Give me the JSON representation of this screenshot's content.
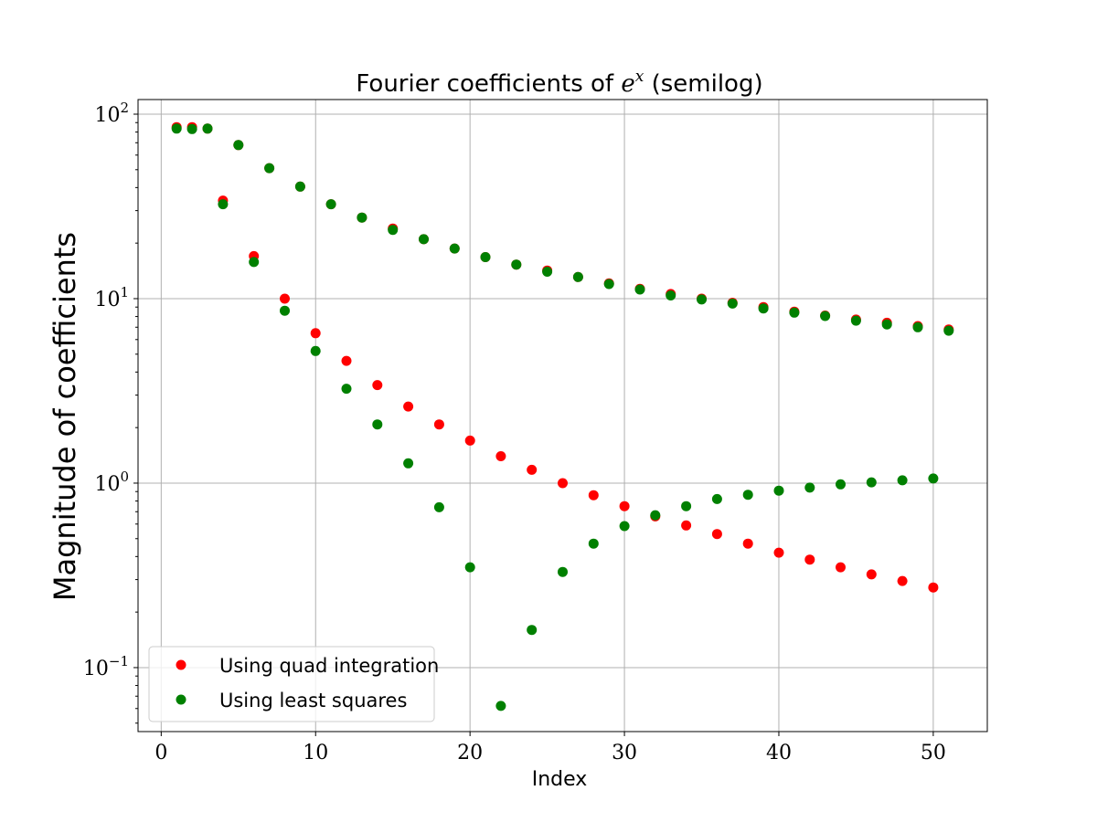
{
  "chart_data": {
    "type": "scatter",
    "title": "Fourier coefficients of ",
    "title_math": "e",
    "title_sup": "x",
    "title_suffix": " (semilog)",
    "xlabel": "Index",
    "ylabel": "Magnitude of coefficients",
    "xlim": [
      -1.5,
      53.5
    ],
    "ylim": [
      0.045,
      120
    ],
    "yscale": "log",
    "grid": true,
    "legend_position": "lower-left",
    "x_ticks": [
      {
        "value": 0,
        "label": "0"
      },
      {
        "value": 10,
        "label": "10"
      },
      {
        "value": 20,
        "label": "20"
      },
      {
        "value": 30,
        "label": "30"
      },
      {
        "value": 40,
        "label": "40"
      },
      {
        "value": 50,
        "label": "50"
      }
    ],
    "y_ticks": [
      {
        "value": 0.1,
        "base": "10",
        "exp": "−1"
      },
      {
        "value": 1,
        "base": "10",
        "exp": "0"
      },
      {
        "value": 10,
        "base": "10",
        "exp": "1"
      },
      {
        "value": 100,
        "base": "10",
        "exp": "2"
      }
    ],
    "series": [
      {
        "name": "Using quad integration",
        "color": "#ff0000",
        "points": [
          [
            1,
            85.0
          ],
          [
            2,
            85.0
          ],
          [
            3,
            83.5
          ],
          [
            4,
            34.0
          ],
          [
            5,
            68.0
          ],
          [
            6,
            17.0
          ],
          [
            7,
            51.0
          ],
          [
            8,
            10.0
          ],
          [
            9,
            40.5
          ],
          [
            10,
            6.5
          ],
          [
            11,
            32.5
          ],
          [
            12,
            4.6
          ],
          [
            13,
            27.5
          ],
          [
            14,
            3.4
          ],
          [
            15,
            24.0
          ],
          [
            16,
            2.6
          ],
          [
            17,
            21.0
          ],
          [
            18,
            2.08
          ],
          [
            19,
            18.7
          ],
          [
            20,
            1.7
          ],
          [
            21,
            16.8
          ],
          [
            22,
            1.4
          ],
          [
            23,
            15.3
          ],
          [
            24,
            1.18
          ],
          [
            25,
            14.2
          ],
          [
            26,
            1.0
          ],
          [
            27,
            13.1
          ],
          [
            28,
            0.86
          ],
          [
            29,
            12.1
          ],
          [
            30,
            0.75
          ],
          [
            31,
            11.3
          ],
          [
            32,
            0.66
          ],
          [
            33,
            10.6
          ],
          [
            34,
            0.59
          ],
          [
            35,
            10.0
          ],
          [
            36,
            0.53
          ],
          [
            37,
            9.5
          ],
          [
            38,
            0.47
          ],
          [
            39,
            9.0
          ],
          [
            40,
            0.42
          ],
          [
            41,
            8.5
          ],
          [
            42,
            0.385
          ],
          [
            43,
            8.1
          ],
          [
            44,
            0.35
          ],
          [
            45,
            7.7
          ],
          [
            46,
            0.32
          ],
          [
            47,
            7.4
          ],
          [
            48,
            0.295
          ],
          [
            49,
            7.1
          ],
          [
            50,
            0.272
          ],
          [
            51,
            6.8
          ]
        ]
      },
      {
        "name": "Using least squares",
        "color": "#008000",
        "points": [
          [
            1,
            83.5
          ],
          [
            2,
            83.0
          ],
          [
            3,
            83.5
          ],
          [
            4,
            32.5
          ],
          [
            5,
            68.0
          ],
          [
            6,
            15.8
          ],
          [
            7,
            51.0
          ],
          [
            8,
            8.6
          ],
          [
            9,
            40.5
          ],
          [
            10,
            5.2
          ],
          [
            11,
            32.5
          ],
          [
            12,
            3.25
          ],
          [
            13,
            27.5
          ],
          [
            14,
            2.08
          ],
          [
            15,
            23.6
          ],
          [
            16,
            1.28
          ],
          [
            17,
            21.0
          ],
          [
            18,
            0.74
          ],
          [
            19,
            18.7
          ],
          [
            20,
            0.35
          ],
          [
            21,
            16.8
          ],
          [
            22,
            0.062
          ],
          [
            23,
            15.3
          ],
          [
            24,
            0.16
          ],
          [
            25,
            14.0
          ],
          [
            26,
            0.33
          ],
          [
            27,
            13.1
          ],
          [
            28,
            0.47
          ],
          [
            29,
            12.0
          ],
          [
            30,
            0.585
          ],
          [
            31,
            11.2
          ],
          [
            32,
            0.67
          ],
          [
            33,
            10.4
          ],
          [
            34,
            0.75
          ],
          [
            35,
            9.9
          ],
          [
            36,
            0.82
          ],
          [
            37,
            9.4
          ],
          [
            38,
            0.865
          ],
          [
            39,
            8.85
          ],
          [
            40,
            0.91
          ],
          [
            41,
            8.4
          ],
          [
            42,
            0.945
          ],
          [
            43,
            8.05
          ],
          [
            44,
            0.985
          ],
          [
            45,
            7.6
          ],
          [
            46,
            1.01
          ],
          [
            47,
            7.25
          ],
          [
            48,
            1.035
          ],
          [
            49,
            7.0
          ],
          [
            50,
            1.06
          ],
          [
            51,
            6.7
          ]
        ]
      }
    ]
  }
}
